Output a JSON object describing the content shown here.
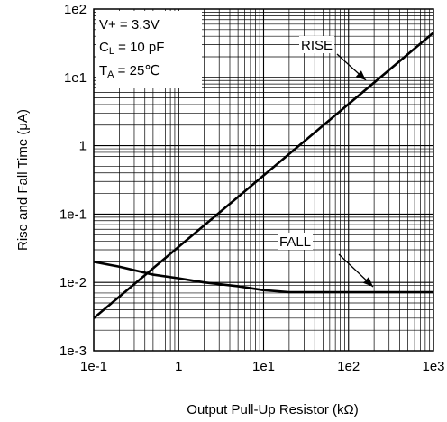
{
  "chart_data": {
    "type": "line",
    "xscale": "log",
    "yscale": "log",
    "xlim": [
      0.1,
      1000
    ],
    "ylim": [
      0.001,
      100
    ],
    "xlabel": "Output Pull-Up Resistor (kΩ)",
    "ylabel": "Rise and Fall Time (μA)",
    "x_ticks": [
      0.1,
      1,
      10,
      100,
      1000
    ],
    "x_tick_labels": [
      "1e-1",
      "1",
      "1e1",
      "1e2",
      "1e3"
    ],
    "y_ticks": [
      0.001,
      0.01,
      0.1,
      1,
      10,
      100
    ],
    "y_tick_labels": [
      "1e-3",
      "1e-2",
      "1e-1",
      "1",
      "1e1",
      "1e2"
    ],
    "grid": true,
    "conditions": {
      "vplus": "V+ = 3.3V",
      "cl_main": "C",
      "cl_sub": "L",
      "cl_rest": " = 10 pF",
      "ta_main": "T",
      "ta_sub": "A",
      "ta_rest": " = 25℃"
    },
    "series": [
      {
        "name": "RISE",
        "color": "#000000",
        "x": [
          0.1,
          1000
        ],
        "y": [
          0.003,
          45
        ]
      },
      {
        "name": "FALL",
        "color": "#000000",
        "x": [
          0.1,
          0.2,
          0.5,
          1,
          2,
          5,
          10,
          20,
          50,
          100,
          1000
        ],
        "y": [
          0.02,
          0.017,
          0.013,
          0.0115,
          0.01,
          0.0088,
          0.0077,
          0.0072,
          0.0072,
          0.0072,
          0.0072
        ]
      }
    ]
  }
}
